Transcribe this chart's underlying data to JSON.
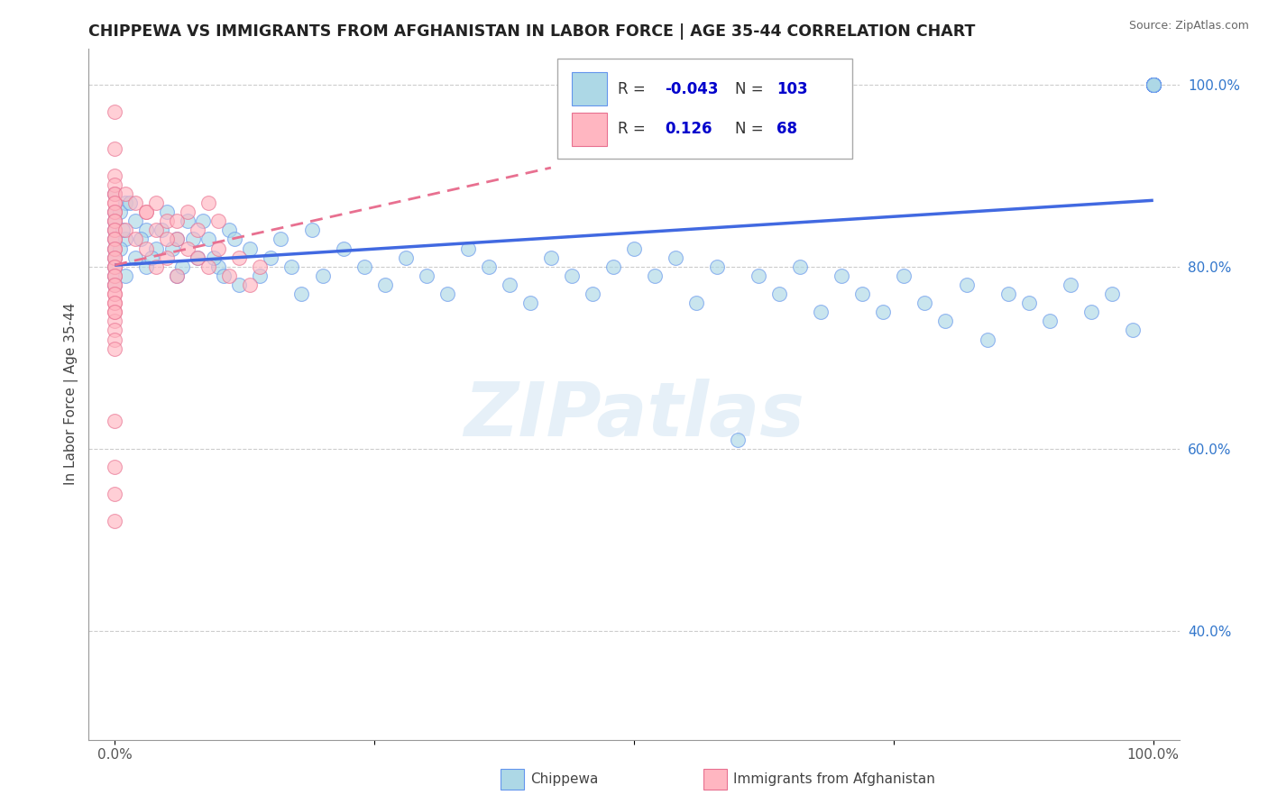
{
  "title": "CHIPPEWA VS IMMIGRANTS FROM AFGHANISTAN IN LABOR FORCE | AGE 35-44 CORRELATION CHART",
  "source": "Source: ZipAtlas.com",
  "ylabel": "In Labor Force | Age 35-44",
  "watermark": "ZIPatlas",
  "color_blue": "#add8e6",
  "color_blue_edge": "#6495ed",
  "color_blue_line": "#4169E1",
  "color_pink": "#ffb6c1",
  "color_pink_edge": "#e87090",
  "color_pink_line": "#e87090",
  "color_r_val": "#0000cc",
  "r1": "-0.043",
  "n1": "103",
  "r2": "0.126",
  "n2": "68",
  "ylim_low": 0.28,
  "ylim_high": 1.04,
  "yticks": [
    0.4,
    0.6,
    0.8,
    1.0
  ],
  "ytick_labels": [
    "40.0%",
    "60.0%",
    "80.0%",
    "100.0%"
  ]
}
